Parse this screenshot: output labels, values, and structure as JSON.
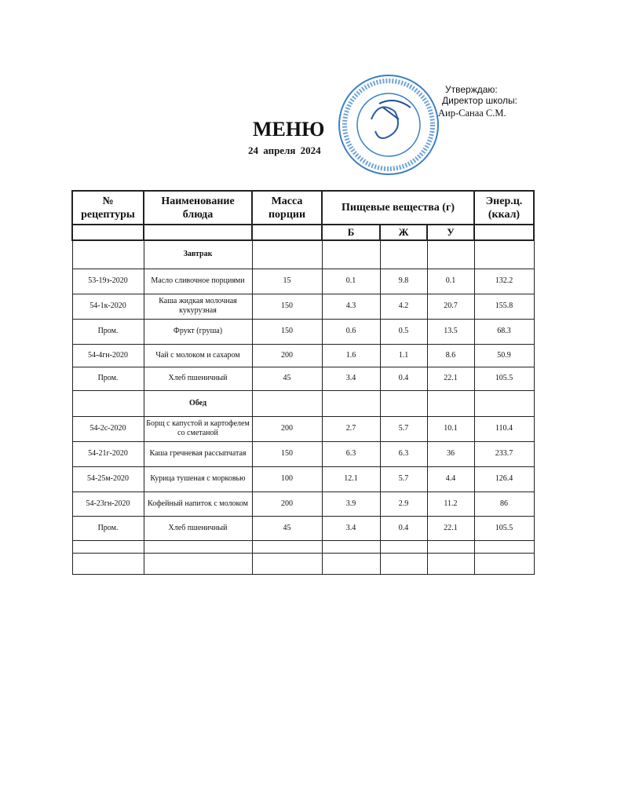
{
  "approval": {
    "line1": "Утверждаю:",
    "line2": "Директор школы:",
    "line3": "Аир-Санаа С.М.",
    "stamp_color": "#3a7fc4"
  },
  "title": "МЕНЮ",
  "date": "24  апреля  2024",
  "header": {
    "recipe": "№ рецептуры",
    "name": "Наименование блюда",
    "mass": "Масса порции",
    "nutrients": "Пищевые вещества (г)",
    "energy": "Энер.ц. (ккал)",
    "b": "Б",
    "zh": "Ж",
    "u": "У"
  },
  "rows": [
    {
      "section": "Завтрак"
    },
    {
      "recipe": "53-19з-2020",
      "name": "Масло сливочное порциями",
      "mass": "15",
      "b": "0.1",
      "zh": "9.8",
      "u": "0.1",
      "kcal": "132.2"
    },
    {
      "recipe": "54-1к-2020",
      "name": "Каша жидкая молочная кукурузная",
      "mass": "150",
      "b": "4.3",
      "zh": "4.2",
      "u": "20.7",
      "kcal": "155.8"
    },
    {
      "recipe": "Пром.",
      "name": "Фрукт (груша)",
      "mass": "150",
      "b": "0.6",
      "zh": "0.5",
      "u": "13.5",
      "kcal": "68.3"
    },
    {
      "recipe": "54-4гн-2020",
      "name": "Чай с молоком и сахаром",
      "mass": "200",
      "b": "1.6",
      "zh": "1.1",
      "u": "8.6",
      "kcal": "50.9"
    },
    {
      "recipe": "Пром.",
      "name": "Хлеб пшеничный",
      "mass": "45",
      "b": "3.4",
      "zh": "0.4",
      "u": "22.1",
      "kcal": "105.5"
    },
    {
      "section": "Обед"
    },
    {
      "recipe": "54-2с-2020",
      "name": "Борщ с капустой и картофелем со сметаной",
      "mass": "200",
      "b": "2.7",
      "zh": "5.7",
      "u": "10.1",
      "kcal": "110.4"
    },
    {
      "recipe": "54-21г-2020",
      "name": "Каша гречневая рассыпчатая",
      "mass": "150",
      "b": "6.3",
      "zh": "6.3",
      "u": "36",
      "kcal": "233.7"
    },
    {
      "recipe": "54-25м-2020",
      "name": "Курица тушеная с морковью",
      "mass": "100",
      "b": "12.1",
      "zh": "5.7",
      "u": "4.4",
      "kcal": "126.4"
    },
    {
      "recipe": "54-23гн-2020",
      "name": "Кофейный напиток с молоком",
      "mass": "200",
      "b": "3.9",
      "zh": "2.9",
      "u": "11.2",
      "kcal": "86"
    },
    {
      "recipe": "Пром.",
      "name": "Хлеб пшеничный",
      "mass": "45",
      "b": "3.4",
      "zh": "0.4",
      "u": "22.1",
      "kcal": "105.5"
    },
    {
      "blank": true
    },
    {
      "blank": true
    }
  ]
}
